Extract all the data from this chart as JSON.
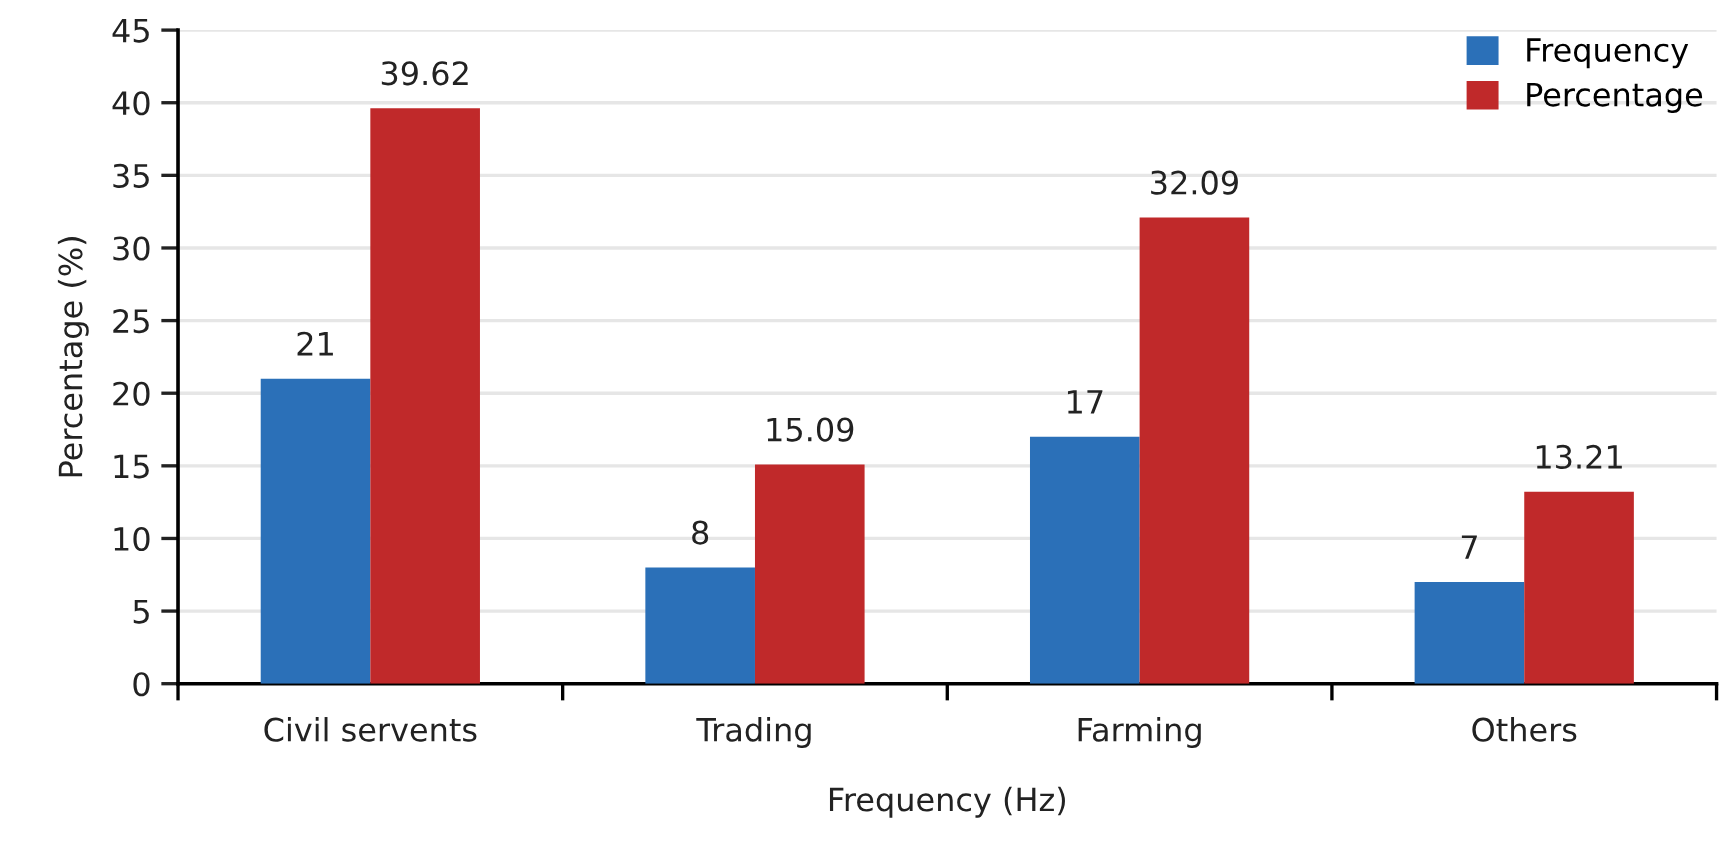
{
  "chart_data": {
    "type": "bar",
    "xlabel": "Frequency (Hz)",
    "ylabel": "Percentage (%)",
    "categories": [
      "Civil servents",
      "Trading",
      "Farming",
      "Others"
    ],
    "series": [
      {
        "name": "Frequency",
        "color": "#2b70b8",
        "values": [
          21,
          8,
          17,
          7
        ]
      },
      {
        "name": "Percentage",
        "color": "#c0292a",
        "values": [
          39.62,
          15.09,
          32.09,
          13.21
        ]
      }
    ],
    "ylim": [
      0,
      45
    ],
    "yticks": [
      0,
      5,
      10,
      15,
      20,
      25,
      30,
      35,
      40,
      45
    ],
    "grid": "y",
    "legend": "top right",
    "data_labels": true
  }
}
